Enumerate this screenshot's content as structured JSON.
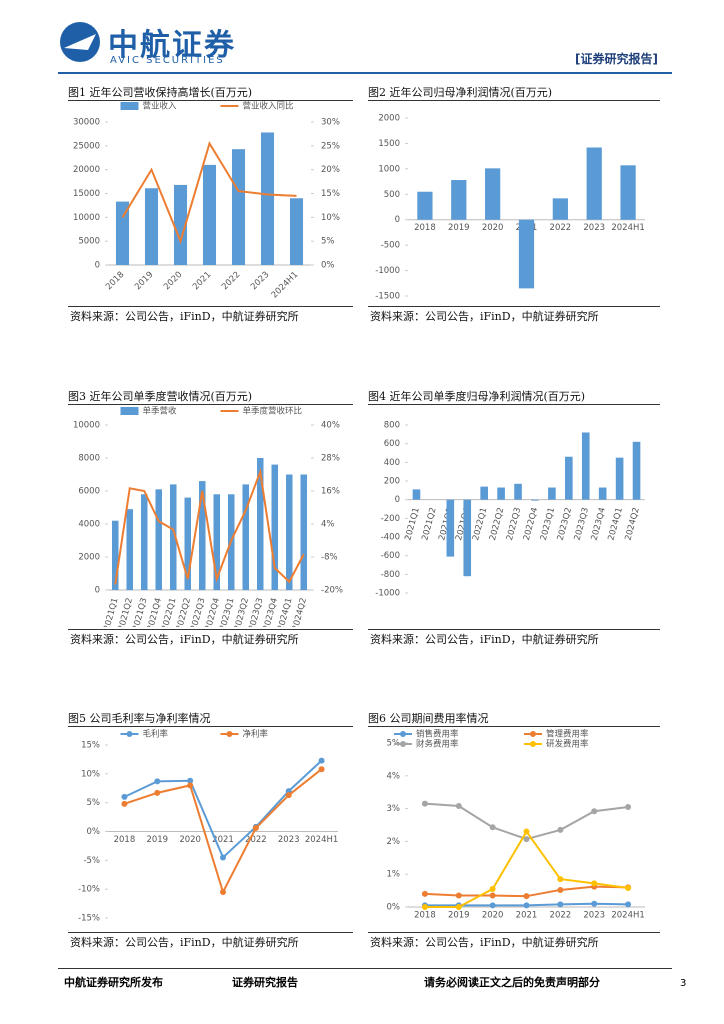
{
  "header": {
    "logo": "中航证券",
    "logo_en": "AVIC SECURITIES",
    "tag": "[证券研究报告]"
  },
  "chart_data": [
    {
      "type": "bar",
      "title": "图1 近年公司营收保持高增长(百万元)",
      "source": "资料来源：公司公告，iFinD，中航证券研究所",
      "categories": [
        "2018",
        "2019",
        "2020",
        "2021",
        "2022",
        "2023",
        "2024H1"
      ],
      "series": [
        {
          "name": "营业收入",
          "type": "bar",
          "color": "#5b9bd5",
          "values": [
            13300,
            16100,
            16800,
            21000,
            24300,
            27800,
            14000
          ]
        },
        {
          "name": "营业收入同比",
          "type": "line",
          "axis": "y2",
          "color": "#ed7d31",
          "values": [
            10,
            20,
            5,
            25.5,
            15.5,
            14.8,
            14.5
          ]
        }
      ],
      "ylim": [
        0,
        30000
      ],
      "yticks": [
        0,
        5000,
        10000,
        15000,
        20000,
        25000,
        30000
      ],
      "y2lim": [
        0,
        30
      ],
      "y2ticks": [
        {
          "value": 0,
          "label": "0%"
        },
        {
          "value": 5,
          "label": "5%"
        },
        {
          "value": 10,
          "label": "10%"
        },
        {
          "value": 15,
          "label": "15%"
        },
        {
          "value": 20,
          "label": "20%"
        },
        {
          "value": 25,
          "label": "25%"
        },
        {
          "value": 30,
          "label": "30%"
        }
      ]
    },
    {
      "type": "bar",
      "title": "图2 近年公司归母净利润情况(百万元)",
      "source": "资料来源：公司公告，iFinD，中航证券研究所",
      "categories": [
        "2018",
        "2019",
        "2020",
        "2021",
        "2022",
        "2023",
        "2024H1"
      ],
      "series": [
        {
          "type": "bar",
          "color": "#5b9bd5",
          "values": [
            550,
            780,
            1010,
            -1350,
            420,
            1420,
            1070
          ]
        }
      ],
      "ylim": [
        -1500,
        2000
      ],
      "yticks": [
        -1500,
        -1000,
        -500,
        0,
        500,
        1000,
        1500,
        2000
      ]
    },
    {
      "type": "bar",
      "title": "图3 近年公司单季度营收情况(百万元)",
      "source": "资料来源：公司公告，iFinD，中航证券研究所",
      "categories": [
        "2021Q1",
        "2021Q2",
        "2021Q3",
        "2021Q4",
        "2022Q1",
        "2022Q2",
        "2022Q3",
        "2022Q4",
        "2023Q1",
        "2023Q2",
        "2023Q3",
        "2023Q4",
        "2024Q1",
        "2024Q2"
      ],
      "series": [
        {
          "name": "单季营收",
          "type": "bar",
          "color": "#5b9bd5",
          "values": [
            4200,
            4900,
            5800,
            6100,
            6400,
            5600,
            6600,
            5800,
            5800,
            6400,
            8000,
            7600,
            7000,
            7000
          ]
        },
        {
          "name": "单季度营收环比",
          "type": "line",
          "axis": "y2",
          "color": "#ed7d31",
          "values": [
            -18,
            17,
            16,
            5,
            2,
            -16,
            16,
            -16,
            -2,
            9,
            23,
            -12,
            -17,
            -7
          ]
        }
      ],
      "ylim": [
        0,
        10000
      ],
      "yticks": [
        0,
        2000,
        4000,
        6000,
        8000,
        10000
      ],
      "y2lim": [
        -20,
        40
      ],
      "y2ticks": [
        {
          "value": -20,
          "label": "-20%"
        },
        {
          "value": -8,
          "label": "-8%"
        },
        {
          "value": 4,
          "label": "4%"
        },
        {
          "value": 16,
          "label": "16%"
        },
        {
          "value": 28,
          "label": "28%"
        },
        {
          "value": 40,
          "label": "40%"
        }
      ]
    },
    {
      "type": "bar",
      "title": "图4 近年公司单季度归母净利润情况(百万元)",
      "source": "资料来源：公司公告，iFinD，中航证券研究所",
      "categories": [
        "2021Q1",
        "2021Q2",
        "2021Q3",
        "2021Q4",
        "2022Q1",
        "2022Q2",
        "2022Q3",
        "2022Q4",
        "2023Q1",
        "2023Q2",
        "2023Q3",
        "2023Q4",
        "2024Q1",
        "2024Q2"
      ],
      "series": [
        {
          "type": "bar",
          "color": "#5b9bd5",
          "values": [
            110,
            0,
            -610,
            -820,
            140,
            130,
            170,
            -10,
            130,
            460,
            720,
            130,
            450,
            620
          ]
        }
      ],
      "ylim": [
        -1000,
        800
      ],
      "yticks": [
        -1000,
        -800,
        -600,
        -400,
        -200,
        0,
        200,
        400,
        600,
        800
      ]
    },
    {
      "type": "line",
      "title": "图5 公司毛利率与净利率情况",
      "source": "资料来源：公司公告，iFinD，中航证券研究所",
      "categories": [
        "2018",
        "2019",
        "2020",
        "2021",
        "2022",
        "2023",
        "2024H1"
      ],
      "series": [
        {
          "name": "毛利率",
          "type": "line",
          "color": "#5b9bd5",
          "values": [
            6,
            8.7,
            8.8,
            -4.5,
            0.8,
            7,
            12.3
          ]
        },
        {
          "name": "净利率",
          "type": "line",
          "color": "#ed7d31",
          "values": [
            4.8,
            6.7,
            8,
            -10.5,
            0.6,
            6.3,
            10.8
          ]
        }
      ],
      "ylim": [
        -15,
        15
      ],
      "yticks": [
        {
          "value": -15,
          "label": "-15%"
        },
        {
          "value": -10,
          "label": "-10%"
        },
        {
          "value": -5,
          "label": "-5%"
        },
        {
          "value": 0,
          "label": "0%"
        },
        {
          "value": 5,
          "label": "5%"
        },
        {
          "value": 10,
          "label": "10%"
        },
        {
          "value": 15,
          "label": "15%"
        }
      ]
    },
    {
      "type": "line",
      "title": "图6 公司期间费用率情况",
      "source": "资料来源：公司公告，iFinD，中航证券研究所",
      "categories": [
        "2018",
        "2019",
        "2020",
        "2021",
        "2022",
        "2023",
        "2024H1"
      ],
      "series": [
        {
          "name": "销售费用率",
          "type": "line",
          "color": "#5b9bd5",
          "values": [
            0.05,
            0.05,
            0.05,
            0.05,
            0.08,
            0.1,
            0.08
          ]
        },
        {
          "name": "管理费用率",
          "type": "line",
          "color": "#ed7d31",
          "values": [
            0.4,
            0.35,
            0.35,
            0.33,
            0.52,
            0.62,
            0.6
          ]
        },
        {
          "name": "财务费用率",
          "type": "line",
          "color": "#a5a5a5",
          "values": [
            3.15,
            3.08,
            2.43,
            2.07,
            2.35,
            2.92,
            3.05
          ]
        },
        {
          "name": "研发费用率",
          "type": "line",
          "color": "#ffc000",
          "values": [
            0,
            0,
            0.55,
            2.3,
            0.85,
            0.72,
            0.58
          ]
        }
      ],
      "ylim": [
        0,
        5
      ],
      "yticks": [
        {
          "value": 0,
          "label": "0%"
        },
        {
          "value": 1,
          "label": "1%"
        },
        {
          "value": 2,
          "label": "2%"
        },
        {
          "value": 3,
          "label": "3%"
        },
        {
          "value": 4,
          "label": "4%"
        },
        {
          "value": 5,
          "label": "5%"
        }
      ]
    }
  ],
  "footer": {
    "left": "中航证券研究所发布",
    "middle": "证券研究报告",
    "right": "请务必阅读正文之后的免责声明部分",
    "page": "3"
  }
}
